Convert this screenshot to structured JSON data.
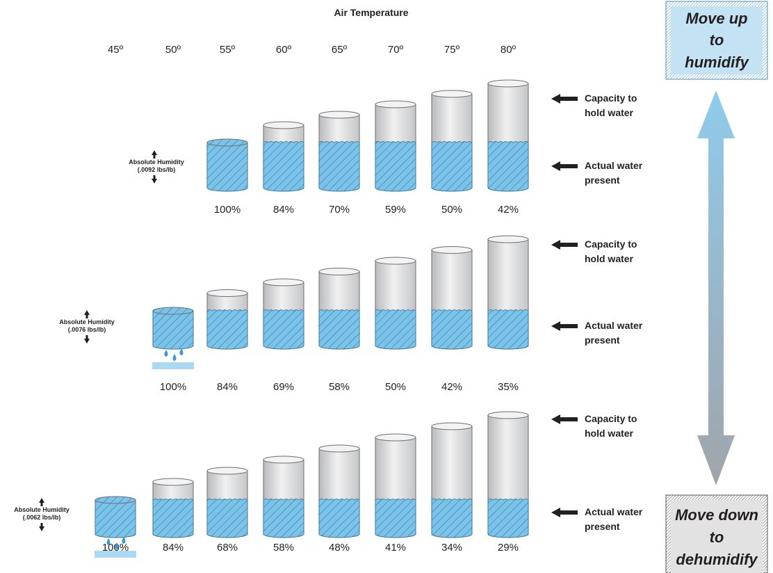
{
  "title": "Air Temperature",
  "temperatures": [
    "45º",
    "50º",
    "55º",
    "60º",
    "65º",
    "70º",
    "75º",
    "80º"
  ],
  "capacity_label": [
    "Capacity to",
    "hold water"
  ],
  "actual_label": [
    "Actual water",
    "present"
  ],
  "move_up": [
    "Move up",
    "to",
    "humidify"
  ],
  "move_down": [
    "Move down",
    "to",
    "dehumidify"
  ],
  "colors": {
    "water": "#5fb0df",
    "water_hatch": "#2e6f99",
    "cylinder": "#d9dadb",
    "up_box": "#c3e3f5",
    "down_box": "#e2e2e2",
    "arrow_top": "#8fcbec",
    "arrow_bottom": "#9ea3aa"
  },
  "rows": [
    {
      "absolute_humidity": [
        "Absolute Humidity",
        "(.0092 lbs/lb)"
      ],
      "first_temp_index": 2,
      "condensation": false,
      "relative_humidity": [
        "100%",
        "84%",
        "70%",
        "59%",
        "50%",
        "42%"
      ]
    },
    {
      "absolute_humidity": [
        "Absolute Humidity",
        "(.0076 lbs/lb)"
      ],
      "first_temp_index": 1,
      "condensation": true,
      "relative_humidity": [
        "100%",
        "84%",
        "69%",
        "58%",
        "50%",
        "42%",
        "35%"
      ]
    },
    {
      "absolute_humidity": [
        "Absolute Humidity",
        "(.0062 lbs/lb)"
      ],
      "first_temp_index": 0,
      "condensation": true,
      "relative_humidity": [
        "100%",
        "84%",
        "68%",
        "58%",
        "48%",
        "41%",
        "34%",
        "29%"
      ]
    }
  ]
}
